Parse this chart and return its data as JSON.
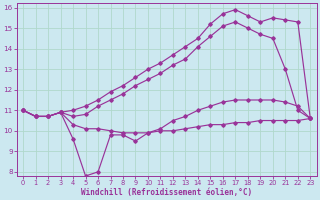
{
  "xlabel": "Windchill (Refroidissement éolien,°C)",
  "background_color": "#cce8f0",
  "line_color": "#993399",
  "grid_color": "#b0d8cc",
  "xlim": [
    -0.5,
    23.5
  ],
  "ylim": [
    7.8,
    16.2
  ],
  "yticks": [
    8,
    9,
    10,
    11,
    12,
    13,
    14,
    15,
    16
  ],
  "xticks": [
    0,
    1,
    2,
    3,
    4,
    5,
    6,
    7,
    8,
    9,
    10,
    11,
    12,
    13,
    14,
    15,
    16,
    17,
    18,
    19,
    20,
    21,
    22,
    23
  ],
  "s_flat_x": [
    0,
    1,
    2,
    3,
    4,
    5,
    6,
    7,
    8,
    9,
    10,
    11,
    12,
    13,
    14,
    15,
    16,
    17,
    18,
    19,
    20,
    21,
    22,
    23
  ],
  "s_flat_y": [
    11.0,
    10.7,
    10.7,
    10.9,
    10.3,
    10.1,
    10.1,
    10.0,
    9.9,
    9.9,
    9.9,
    10.0,
    10.0,
    10.1,
    10.2,
    10.3,
    10.3,
    10.4,
    10.4,
    10.5,
    10.5,
    10.5,
    10.5,
    10.6
  ],
  "s_low_x": [
    0,
    1,
    2,
    3,
    4,
    5,
    6,
    7,
    8,
    9,
    10,
    11,
    12,
    13,
    14,
    15,
    16,
    17,
    18,
    19,
    20,
    21,
    22,
    23
  ],
  "s_low_y": [
    11.0,
    10.7,
    10.7,
    10.9,
    9.6,
    7.8,
    8.0,
    9.8,
    9.8,
    9.5,
    9.9,
    10.1,
    10.5,
    10.7,
    11.0,
    11.2,
    11.4,
    11.5,
    11.5,
    11.5,
    11.5,
    11.4,
    11.2,
    10.6
  ],
  "s_mid_x": [
    0,
    1,
    2,
    3,
    4,
    5,
    6,
    7,
    8,
    9,
    10,
    11,
    12,
    13,
    14,
    15,
    16,
    17,
    18,
    19,
    20,
    21,
    22,
    23
  ],
  "s_mid_y": [
    11.0,
    10.7,
    10.7,
    10.9,
    10.7,
    10.8,
    11.2,
    11.5,
    11.8,
    12.2,
    12.5,
    12.8,
    13.2,
    13.5,
    14.1,
    14.6,
    15.1,
    15.3,
    15.0,
    14.7,
    14.5,
    13.0,
    11.0,
    10.6
  ],
  "s_top_x": [
    0,
    1,
    2,
    3,
    4,
    5,
    6,
    7,
    8,
    9,
    10,
    11,
    12,
    13,
    14,
    15,
    16,
    17,
    18,
    19,
    20,
    21,
    22,
    23
  ],
  "s_top_y": [
    11.0,
    10.7,
    10.7,
    10.9,
    11.0,
    11.2,
    11.5,
    11.9,
    12.2,
    12.6,
    13.0,
    13.3,
    13.7,
    14.1,
    14.5,
    15.2,
    15.7,
    15.9,
    15.6,
    15.3,
    15.5,
    15.4,
    15.3,
    10.6
  ]
}
